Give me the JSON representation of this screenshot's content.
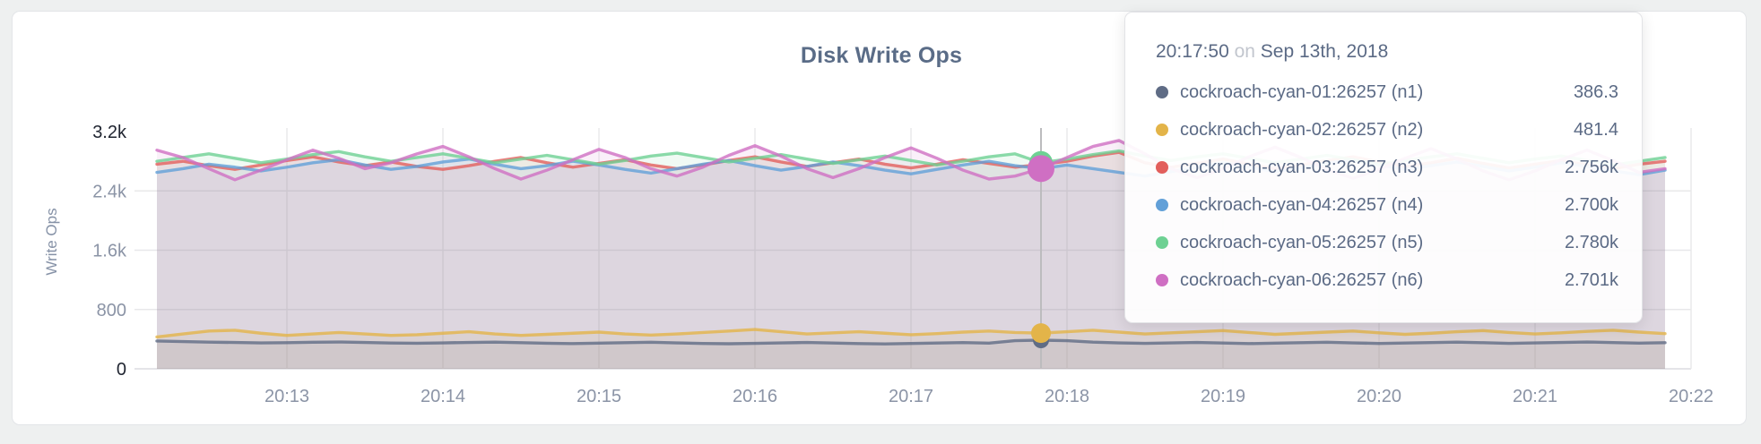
{
  "card": {
    "background": "#ffffff"
  },
  "chart_data": {
    "type": "line",
    "title": "Disk Write Ops",
    "xlabel": "",
    "ylabel": "Write Ops",
    "ylim": [
      0,
      3200
    ],
    "grid": true,
    "legend_position": "tooltip",
    "x_start": "20:12:10",
    "x_step_seconds": 10,
    "y_ticks": [
      {
        "value": 0,
        "label": "0",
        "emph": true
      },
      {
        "value": 800,
        "label": "800",
        "emph": false
      },
      {
        "value": 1600,
        "label": "1.6k",
        "emph": false
      },
      {
        "value": 2400,
        "label": "2.4k",
        "emph": false
      },
      {
        "value": 3200,
        "label": "3.2k",
        "emph": true
      }
    ],
    "x_ticks": [
      {
        "t": 50,
        "label": "20:13"
      },
      {
        "t": 110,
        "label": "20:14"
      },
      {
        "t": 170,
        "label": "20:15"
      },
      {
        "t": 230,
        "label": "20:16"
      },
      {
        "t": 290,
        "label": "20:17"
      },
      {
        "t": 350,
        "label": "20:18"
      },
      {
        "t": 410,
        "label": "20:19"
      },
      {
        "t": 470,
        "label": "20:20"
      },
      {
        "t": 530,
        "label": "20:21"
      },
      {
        "t": 590,
        "label": "20:22"
      }
    ],
    "highlight": {
      "t": 340,
      "index": 34,
      "time": "20:17:50",
      "date": "Sep 13th, 2018"
    },
    "series": [
      {
        "id": "n1",
        "label": "cockroach-cyan-01:26257 (n1)",
        "color": "#5f6c85",
        "point_radius": 9,
        "values": [
          375,
          368,
          360,
          355,
          350,
          352,
          358,
          362,
          355,
          348,
          345,
          350,
          356,
          360,
          352,
          345,
          340,
          346,
          352,
          358,
          350,
          342,
          338,
          344,
          350,
          355,
          348,
          340,
          336,
          342,
          348,
          354,
          346,
          380,
          386.3,
          380,
          360,
          350,
          344,
          350,
          356,
          348,
          340,
          346,
          352,
          358,
          350,
          342,
          348,
          354,
          360,
          352,
          344,
          350,
          356,
          362,
          354,
          346,
          352
        ]
      },
      {
        "id": "n2",
        "label": "cockroach-cyan-02:26257 (n2)",
        "color": "#e3b449",
        "point_radius": 11,
        "values": [
          430,
          470,
          510,
          520,
          480,
          450,
          470,
          490,
          470,
          450,
          460,
          480,
          500,
          470,
          450,
          465,
          480,
          495,
          470,
          455,
          470,
          490,
          510,
          530,
          500,
          470,
          485,
          500,
          480,
          460,
          475,
          495,
          510,
          490,
          481.4,
          500,
          520,
          495,
          470,
          485,
          500,
          515,
          490,
          465,
          480,
          495,
          510,
          485,
          465,
          480,
          500,
          515,
          490,
          470,
          485,
          505,
          520,
          495,
          475
        ]
      },
      {
        "id": "n3",
        "label": "cockroach-cyan-03:26257 (n3)",
        "color": "#e25f5c",
        "point_radius": 11,
        "values": [
          2760,
          2800,
          2740,
          2690,
          2750,
          2810,
          2860,
          2790,
          2740,
          2790,
          2730,
          2690,
          2740,
          2800,
          2850,
          2780,
          2720,
          2770,
          2820,
          2750,
          2700,
          2750,
          2810,
          2860,
          2790,
          2730,
          2780,
          2830,
          2760,
          2710,
          2760,
          2820,
          2770,
          2720,
          2756,
          2800,
          2870,
          2920,
          2780,
          2720,
          2770,
          2830,
          2760,
          2700,
          2750,
          2810,
          2860,
          2790,
          2730,
          2780,
          2840,
          2770,
          2710,
          2760,
          2810,
          2750,
          2700,
          2760,
          2800
        ]
      },
      {
        "id": "n4",
        "label": "cockroach-cyan-04:26257 (n4)",
        "color": "#62a0d8",
        "point_radius": 10,
        "values": [
          2650,
          2700,
          2760,
          2720,
          2670,
          2720,
          2780,
          2820,
          2750,
          2690,
          2730,
          2790,
          2830,
          2760,
          2700,
          2740,
          2800,
          2750,
          2690,
          2640,
          2700,
          2760,
          2810,
          2740,
          2680,
          2730,
          2790,
          2740,
          2680,
          2630,
          2690,
          2750,
          2800,
          2740,
          2700,
          2750,
          2700,
          2650,
          2600,
          2660,
          2720,
          2780,
          2720,
          2660,
          2710,
          2770,
          2820,
          2750,
          2690,
          2740,
          2790,
          2730,
          2670,
          2720,
          2780,
          2730,
          2670,
          2620,
          2680
        ]
      },
      {
        "id": "n5",
        "label": "cockroach-cyan-05:26257 (n5)",
        "color": "#6ed193",
        "point_radius": 13,
        "values": [
          2800,
          2850,
          2900,
          2840,
          2780,
          2830,
          2890,
          2930,
          2860,
          2800,
          2850,
          2900,
          2840,
          2780,
          2830,
          2880,
          2820,
          2760,
          2810,
          2870,
          2910,
          2850,
          2790,
          2840,
          2890,
          2830,
          2770,
          2820,
          2870,
          2810,
          2750,
          2800,
          2860,
          2900,
          2780,
          2830,
          2890,
          2940,
          2870,
          2810,
          2860,
          2900,
          2840,
          2780,
          2830,
          2880,
          2820,
          2760,
          2810,
          2860,
          2900,
          2840,
          2780,
          2830,
          2870,
          2810,
          2750,
          2800,
          2850
        ]
      },
      {
        "id": "n6",
        "label": "cockroach-cyan-06:26257 (n6)",
        "color": "#cf6fc3",
        "point_radius": 15,
        "values": [
          2950,
          2850,
          2700,
          2550,
          2680,
          2820,
          2950,
          2840,
          2700,
          2780,
          2900,
          3000,
          2860,
          2700,
          2560,
          2680,
          2820,
          2960,
          2850,
          2700,
          2600,
          2720,
          2880,
          3010,
          2870,
          2700,
          2580,
          2700,
          2850,
          2980,
          2840,
          2680,
          2560,
          2600,
          2701,
          2850,
          3000,
          3080,
          2900,
          2700,
          2580,
          2700,
          2860,
          2990,
          2850,
          2690,
          2570,
          2690,
          2840,
          2970,
          2830,
          2670,
          2550,
          2670,
          2820,
          2950,
          2810,
          2650,
          2700
        ]
      }
    ]
  },
  "tooltip": {
    "time": "20:17:50",
    "conjunction": "on",
    "date": "Sep 13th, 2018",
    "rows": [
      {
        "label": "cockroach-cyan-01:26257 (n1)",
        "value": "386.3"
      },
      {
        "label": "cockroach-cyan-02:26257 (n2)",
        "value": "481.4"
      },
      {
        "label": "cockroach-cyan-03:26257 (n3)",
        "value": "2.756k"
      },
      {
        "label": "cockroach-cyan-04:26257 (n4)",
        "value": "2.700k"
      },
      {
        "label": "cockroach-cyan-05:26257 (n5)",
        "value": "2.780k"
      },
      {
        "label": "cockroach-cyan-06:26257 (n6)",
        "value": "2.701k"
      }
    ]
  }
}
